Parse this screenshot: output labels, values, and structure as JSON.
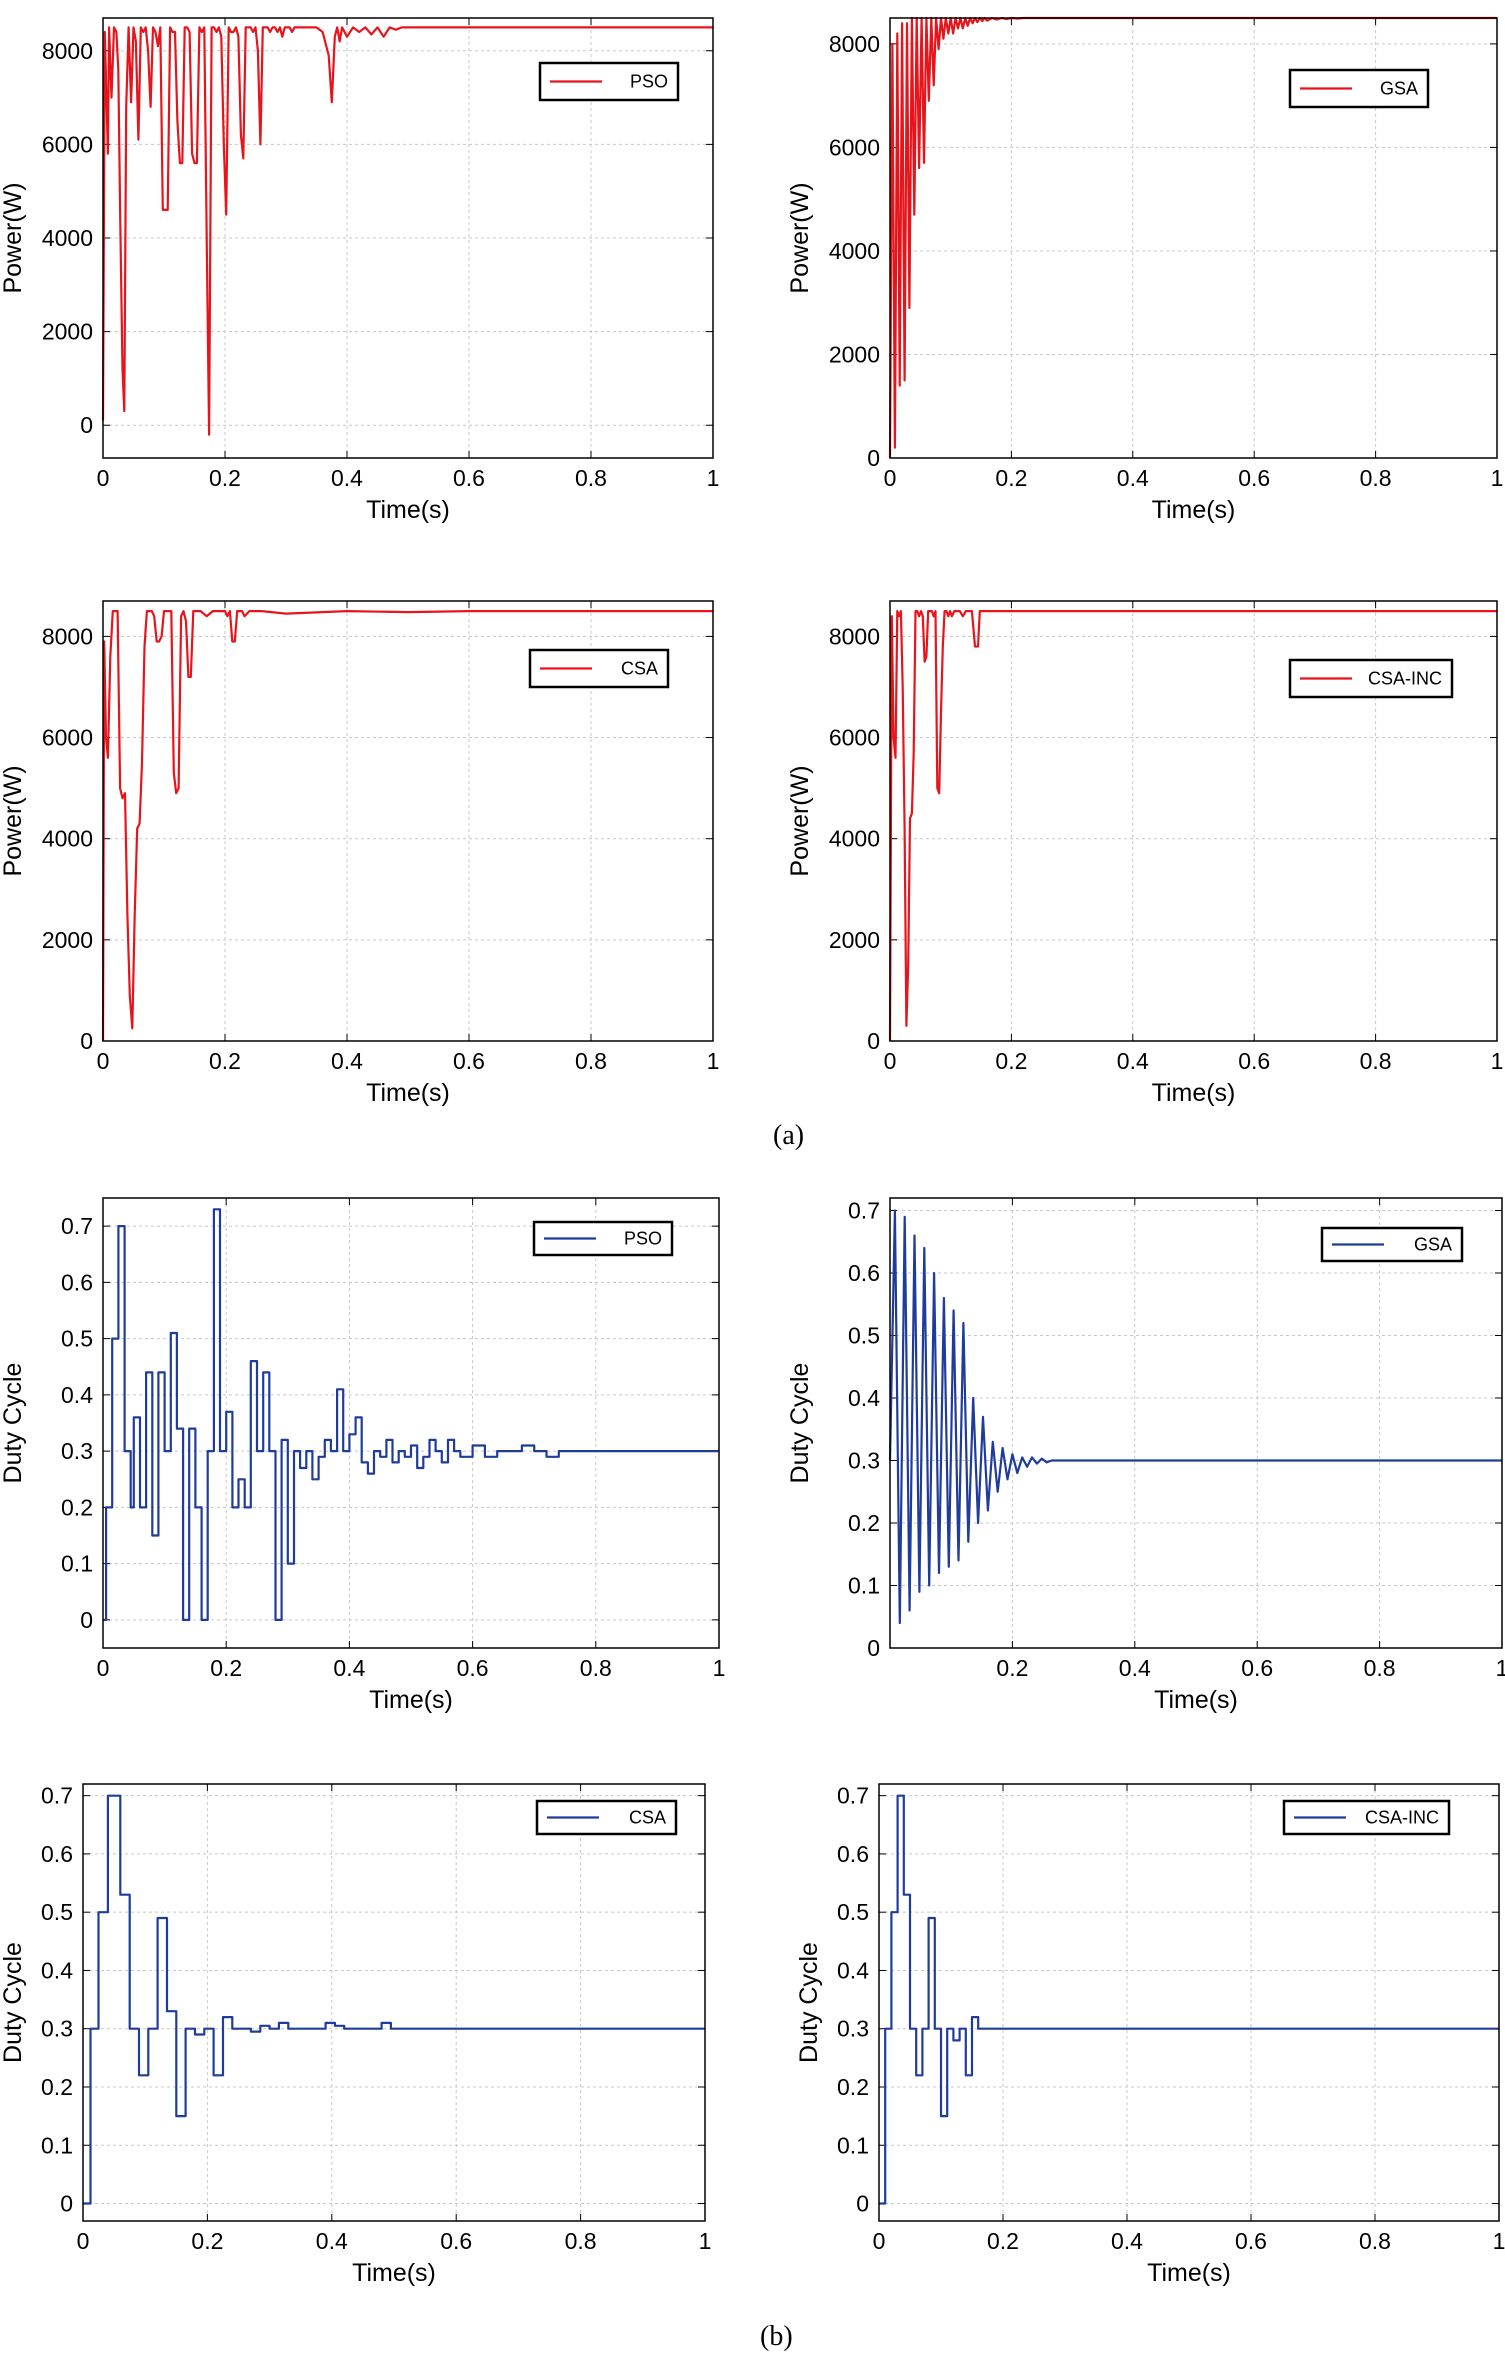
{
  "figure": {
    "caption_a": "(a)",
    "caption_b": "(b)"
  },
  "colors": {
    "power": "#e8141b",
    "duty": "#1f3c9c",
    "grid": "#c8c8c8"
  },
  "chart_data": [
    {
      "type": "line",
      "title": "",
      "legend": "PSO",
      "legend_position": "top-right",
      "xlabel": "Time(s)",
      "ylabel": "Power(W)",
      "xlim": [
        0,
        1
      ],
      "ylim": [
        -700,
        8700
      ],
      "xticks": [
        0,
        0.2,
        0.4,
        0.6,
        0.8,
        1
      ],
      "xtick_labels": [
        "0",
        "0.2",
        "0.4",
        "0.6",
        "0.8",
        "1"
      ],
      "yticks": [
        0,
        2000,
        4000,
        6000,
        8000
      ],
      "ytick_labels": [
        "0",
        "2000",
        "4000",
        "6000",
        "8000"
      ],
      "grid": true,
      "color_key": "power",
      "x": [
        0,
        0.003,
        0.008,
        0.01,
        0.014,
        0.018,
        0.022,
        0.025,
        0.028,
        0.032,
        0.035,
        0.038,
        0.042,
        0.046,
        0.05,
        0.054,
        0.058,
        0.062,
        0.066,
        0.07,
        0.074,
        0.078,
        0.082,
        0.086,
        0.09,
        0.094,
        0.098,
        0.102,
        0.106,
        0.11,
        0.114,
        0.118,
        0.122,
        0.126,
        0.13,
        0.134,
        0.138,
        0.142,
        0.146,
        0.15,
        0.154,
        0.158,
        0.162,
        0.166,
        0.17,
        0.174,
        0.178,
        0.182,
        0.186,
        0.19,
        0.194,
        0.198,
        0.202,
        0.206,
        0.21,
        0.214,
        0.218,
        0.222,
        0.226,
        0.23,
        0.234,
        0.238,
        0.242,
        0.246,
        0.25,
        0.254,
        0.258,
        0.262,
        0.266,
        0.27,
        0.274,
        0.278,
        0.282,
        0.286,
        0.29,
        0.294,
        0.298,
        0.302,
        0.306,
        0.31,
        0.314,
        0.318,
        0.322,
        0.326,
        0.33,
        0.34,
        0.35,
        0.36,
        0.37,
        0.375,
        0.38,
        0.384,
        0.388,
        0.392,
        0.4,
        0.41,
        0.42,
        0.43,
        0.44,
        0.45,
        0.46,
        0.47,
        0.48,
        0.49,
        0.5,
        0.52,
        0.55,
        0.6,
        0.7,
        0.8,
        0.9,
        1.0
      ],
      "y": [
        100,
        8400,
        5800,
        8500,
        7000,
        8500,
        8400,
        7600,
        4600,
        1200,
        300,
        6800,
        8500,
        6900,
        8500,
        8200,
        6100,
        8500,
        8400,
        8500,
        8000,
        6800,
        8500,
        8400,
        8100,
        8500,
        4600,
        4600,
        4600,
        8500,
        8400,
        8400,
        6500,
        5600,
        5600,
        8500,
        8500,
        8400,
        5800,
        5600,
        5600,
        8500,
        8400,
        8500,
        4000,
        -200,
        8500,
        8500,
        8400,
        8500,
        8300,
        6000,
        4500,
        8500,
        8400,
        8400,
        8500,
        8300,
        6200,
        5700,
        8500,
        8500,
        8500,
        8400,
        8500,
        8000,
        6000,
        8500,
        8500,
        8500,
        8400,
        8500,
        8500,
        8400,
        8500,
        8300,
        8500,
        8500,
        8500,
        8400,
        8500,
        8500,
        8500,
        8500,
        8500,
        8500,
        8500,
        8400,
        7900,
        6900,
        8300,
        8500,
        8200,
        8500,
        8300,
        8500,
        8400,
        8500,
        8350,
        8500,
        8300,
        8500,
        8450,
        8500,
        8500,
        8500,
        8500,
        8500,
        8500,
        8500,
        8500,
        8500
      ]
    },
    {
      "type": "line",
      "title": "",
      "legend": "GSA",
      "legend_position": "top-right",
      "xlabel": "Time(s)",
      "ylabel": "Power(W)",
      "xlim": [
        0,
        1
      ],
      "ylim": [
        0,
        8500
      ],
      "xticks": [
        0,
        0.2,
        0.4,
        0.6,
        0.8,
        1
      ],
      "xtick_labels": [
        "0",
        "0.2",
        "0.4",
        "0.6",
        "0.8",
        "1"
      ],
      "yticks": [
        0,
        2000,
        4000,
        6000,
        8000
      ],
      "ytick_labels": [
        "0",
        "2000",
        "4000",
        "6000",
        "8000"
      ],
      "grid": true,
      "color_key": "power",
      "x": [
        0,
        0.004,
        0.008,
        0.012,
        0.016,
        0.02,
        0.024,
        0.028,
        0.032,
        0.036,
        0.04,
        0.044,
        0.048,
        0.052,
        0.056,
        0.06,
        0.064,
        0.068,
        0.072,
        0.076,
        0.08,
        0.084,
        0.088,
        0.092,
        0.096,
        0.1,
        0.104,
        0.108,
        0.112,
        0.116,
        0.12,
        0.124,
        0.128,
        0.132,
        0.136,
        0.14,
        0.144,
        0.148,
        0.152,
        0.156,
        0.16,
        0.168,
        0.176,
        0.184,
        0.192,
        0.2,
        0.21,
        0.22,
        0.24,
        0.3,
        0.5,
        1.0
      ],
      "y": [
        0,
        8000,
        200,
        8200,
        1400,
        8400,
        1500,
        8400,
        2900,
        8500,
        4700,
        8500,
        5600,
        8500,
        5700,
        8500,
        6900,
        8500,
        7200,
        8500,
        7900,
        8500,
        8100,
        8500,
        8200,
        8500,
        8200,
        8500,
        8300,
        8500,
        8300,
        8500,
        8350,
        8500,
        8400,
        8500,
        8420,
        8500,
        8440,
        8500,
        8450,
        8500,
        8470,
        8500,
        8480,
        8500,
        8490,
        8500,
        8500,
        8500,
        8500,
        8500
      ]
    },
    {
      "type": "line",
      "title": "",
      "legend": "CSA",
      "legend_position": "top-right",
      "xlabel": "Time(s)",
      "ylabel": "Power(W)",
      "xlim": [
        0,
        1
      ],
      "ylim": [
        0,
        8700
      ],
      "xticks": [
        0,
        0.2,
        0.4,
        0.6,
        0.8,
        1
      ],
      "xtick_labels": [
        "0",
        "0.2",
        "0.4",
        "0.6",
        "0.8",
        "1"
      ],
      "yticks": [
        0,
        2000,
        4000,
        6000,
        8000
      ],
      "ytick_labels": [
        "0",
        "2000",
        "4000",
        "6000",
        "8000"
      ],
      "grid": true,
      "color_key": "power",
      "x": [
        0,
        0.002,
        0.005,
        0.008,
        0.012,
        0.016,
        0.02,
        0.024,
        0.028,
        0.032,
        0.036,
        0.04,
        0.044,
        0.048,
        0.052,
        0.056,
        0.06,
        0.064,
        0.068,
        0.072,
        0.076,
        0.08,
        0.084,
        0.088,
        0.092,
        0.096,
        0.1,
        0.104,
        0.108,
        0.112,
        0.116,
        0.12,
        0.124,
        0.128,
        0.132,
        0.136,
        0.14,
        0.144,
        0.148,
        0.152,
        0.156,
        0.16,
        0.17,
        0.18,
        0.19,
        0.2,
        0.204,
        0.208,
        0.212,
        0.216,
        0.22,
        0.224,
        0.228,
        0.232,
        0.24,
        0.26,
        0.3,
        0.4,
        0.5,
        0.6,
        0.8,
        1.0
      ],
      "y": [
        0,
        7900,
        6000,
        5600,
        7600,
        8500,
        8500,
        8500,
        5000,
        4800,
        4900,
        2500,
        900,
        250,
        2500,
        4200,
        4300,
        5500,
        7800,
        8500,
        8500,
        8500,
        8400,
        7900,
        7900,
        8000,
        8500,
        8500,
        8500,
        8500,
        5300,
        4900,
        5000,
        8400,
        8500,
        8300,
        7200,
        7200,
        8500,
        8500,
        8500,
        8500,
        8400,
        8500,
        8500,
        8500,
        8400,
        8500,
        7900,
        7900,
        8500,
        8500,
        8500,
        8400,
        8500,
        8500,
        8450,
        8500,
        8480,
        8500,
        8500,
        8500
      ]
    },
    {
      "type": "line",
      "title": "",
      "legend": "CSA-INC",
      "legend_position": "top-right",
      "xlabel": "Time(s)",
      "ylabel": "Power(W)",
      "xlim": [
        0,
        1
      ],
      "ylim": [
        0,
        8700
      ],
      "xticks": [
        0,
        0.2,
        0.4,
        0.6,
        0.8,
        1
      ],
      "xtick_labels": [
        "0",
        "0.2",
        "0.4",
        "0.6",
        "0.8",
        "1"
      ],
      "yticks": [
        0,
        2000,
        4000,
        6000,
        8000
      ],
      "ytick_labels": [
        "0",
        "2000",
        "4000",
        "6000",
        "8000"
      ],
      "grid": true,
      "color_key": "power",
      "x": [
        0,
        0.003,
        0.006,
        0.009,
        0.012,
        0.015,
        0.018,
        0.021,
        0.024,
        0.027,
        0.03,
        0.033,
        0.036,
        0.039,
        0.042,
        0.045,
        0.048,
        0.051,
        0.054,
        0.057,
        0.06,
        0.063,
        0.066,
        0.069,
        0.072,
        0.075,
        0.078,
        0.081,
        0.084,
        0.087,
        0.09,
        0.093,
        0.096,
        0.099,
        0.102,
        0.106,
        0.11,
        0.115,
        0.12,
        0.125,
        0.13,
        0.135,
        0.14,
        0.145,
        0.148,
        0.152,
        0.156,
        0.16,
        0.2,
        0.4,
        0.6,
        1.0
      ],
      "y": [
        0,
        8400,
        6000,
        5600,
        8500,
        8400,
        8500,
        7000,
        4200,
        300,
        1500,
        4400,
        4500,
        5700,
        8500,
        8500,
        8400,
        8500,
        8400,
        7500,
        7600,
        8500,
        8500,
        8500,
        8400,
        8500,
        5000,
        4900,
        6500,
        7800,
        8500,
        8500,
        8400,
        8500,
        8400,
        8500,
        8500,
        8500,
        8400,
        8500,
        8500,
        8500,
        7800,
        7800,
        8500,
        8500,
        8500,
        8500,
        8500,
        8500,
        8500,
        8500
      ]
    },
    {
      "type": "line",
      "step": true,
      "title": "",
      "legend": "PSO",
      "legend_position": "top-right",
      "xlabel": "Time(s)",
      "ylabel": "Duty Cycle",
      "xlim": [
        0,
        1
      ],
      "ylim": [
        -0.05,
        0.75
      ],
      "xticks": [
        0,
        0.2,
        0.4,
        0.6,
        0.8,
        1
      ],
      "xtick_labels": [
        "0",
        "0.2",
        "0.4",
        "0.6",
        "0.8",
        "1"
      ],
      "yticks": [
        0,
        0.1,
        0.2,
        0.3,
        0.4,
        0.5,
        0.6,
        0.7
      ],
      "ytick_labels": [
        "0",
        "0.1",
        "0.2",
        "0.3",
        "0.4",
        "0.5",
        "0.6",
        "0.7"
      ],
      "grid": true,
      "color_key": "duty",
      "x": [
        0,
        0.005,
        0.015,
        0.025,
        0.035,
        0.045,
        0.05,
        0.06,
        0.07,
        0.08,
        0.09,
        0.1,
        0.11,
        0.12,
        0.13,
        0.14,
        0.15,
        0.16,
        0.17,
        0.18,
        0.19,
        0.2,
        0.21,
        0.22,
        0.23,
        0.24,
        0.25,
        0.26,
        0.27,
        0.28,
        0.29,
        0.3,
        0.31,
        0.32,
        0.33,
        0.34,
        0.35,
        0.36,
        0.37,
        0.38,
        0.39,
        0.4,
        0.41,
        0.42,
        0.43,
        0.44,
        0.45,
        0.46,
        0.47,
        0.48,
        0.49,
        0.5,
        0.51,
        0.52,
        0.53,
        0.54,
        0.55,
        0.56,
        0.57,
        0.58,
        0.6,
        0.62,
        0.64,
        0.66,
        0.68,
        0.7,
        0.72,
        0.74,
        0.76,
        0.78,
        0.8,
        0.84,
        0.88,
        0.92,
        0.96,
        1.0
      ],
      "y": [
        0,
        0.2,
        0.5,
        0.7,
        0.3,
        0.2,
        0.36,
        0.2,
        0.44,
        0.15,
        0.44,
        0.3,
        0.51,
        0.34,
        0,
        0.34,
        0.2,
        0,
        0.3,
        0.73,
        0.3,
        0.37,
        0.2,
        0.25,
        0.2,
        0.46,
        0.3,
        0.44,
        0.3,
        0,
        0.32,
        0.1,
        0.3,
        0.27,
        0.3,
        0.25,
        0.29,
        0.32,
        0.3,
        0.41,
        0.3,
        0.33,
        0.36,
        0.28,
        0.26,
        0.3,
        0.29,
        0.32,
        0.28,
        0.3,
        0.29,
        0.31,
        0.27,
        0.29,
        0.32,
        0.3,
        0.28,
        0.32,
        0.3,
        0.29,
        0.31,
        0.29,
        0.3,
        0.3,
        0.31,
        0.3,
        0.29,
        0.3,
        0.3,
        0.3,
        0.3,
        0.3,
        0.3,
        0.3,
        0.3,
        0.3
      ]
    },
    {
      "type": "line",
      "title": "",
      "legend": "GSA",
      "legend_position": "top-right",
      "xlabel": "Time(s)",
      "ylabel": "Duty Cycle",
      "xlim": [
        0,
        1
      ],
      "ylim": [
        0,
        0.72
      ],
      "xticks": [
        0.2,
        0.4,
        0.6,
        0.8,
        1
      ],
      "xtick_labels": [
        "0.2",
        "0.4",
        "0.6",
        "0.8",
        "1"
      ],
      "yticks": [
        0,
        0.1,
        0.2,
        0.3,
        0.4,
        0.5,
        0.6,
        0.7
      ],
      "ytick_labels": [
        "0",
        "0.1",
        "0.2",
        "0.3",
        "0.4",
        "0.5",
        "0.6",
        "0.7"
      ],
      "grid": true,
      "color_key": "duty",
      "x": [
        0,
        0.008,
        0.016,
        0.024,
        0.032,
        0.04,
        0.048,
        0.056,
        0.064,
        0.072,
        0.08,
        0.088,
        0.096,
        0.104,
        0.112,
        0.12,
        0.128,
        0.136,
        0.144,
        0.152,
        0.16,
        0.168,
        0.176,
        0.184,
        0.192,
        0.2,
        0.208,
        0.216,
        0.224,
        0.232,
        0.24,
        0.248,
        0.256,
        0.264,
        0.272,
        0.28,
        0.3,
        0.4,
        0.6,
        0.8,
        1.0
      ],
      "y": [
        0.3,
        0.7,
        0.04,
        0.69,
        0.06,
        0.66,
        0.09,
        0.64,
        0.1,
        0.6,
        0.12,
        0.56,
        0.13,
        0.54,
        0.14,
        0.52,
        0.17,
        0.4,
        0.2,
        0.37,
        0.22,
        0.33,
        0.25,
        0.32,
        0.27,
        0.31,
        0.28,
        0.305,
        0.29,
        0.305,
        0.295,
        0.303,
        0.297,
        0.3,
        0.3,
        0.3,
        0.3,
        0.3,
        0.3,
        0.3,
        0.3
      ]
    },
    {
      "type": "line",
      "step": true,
      "title": "",
      "legend": "CSA",
      "legend_position": "top-right",
      "xlabel": "Time(s)",
      "ylabel": "Duty Cycle",
      "xlim": [
        0,
        1
      ],
      "ylim": [
        -0.03,
        0.72
      ],
      "xticks": [
        0,
        0.2,
        0.4,
        0.6,
        0.8,
        1
      ],
      "xtick_labels": [
        "0",
        "0.2",
        "0.4",
        "0.6",
        "0.8",
        "1"
      ],
      "yticks": [
        0,
        0.1,
        0.2,
        0.3,
        0.4,
        0.5,
        0.6,
        0.7
      ],
      "ytick_labels": [
        "0",
        "0.1",
        "0.2",
        "0.3",
        "0.4",
        "0.5",
        "0.6",
        "0.7"
      ],
      "grid": true,
      "color_key": "duty",
      "x": [
        0,
        0.012,
        0.025,
        0.04,
        0.06,
        0.075,
        0.09,
        0.105,
        0.12,
        0.135,
        0.15,
        0.165,
        0.18,
        0.195,
        0.21,
        0.225,
        0.24,
        0.255,
        0.27,
        0.285,
        0.3,
        0.315,
        0.33,
        0.345,
        0.36,
        0.375,
        0.39,
        0.405,
        0.42,
        0.435,
        0.45,
        0.465,
        0.48,
        0.495,
        0.51,
        0.6,
        0.8,
        1.0
      ],
      "y": [
        0,
        0.3,
        0.5,
        0.7,
        0.53,
        0.3,
        0.22,
        0.3,
        0.49,
        0.33,
        0.15,
        0.3,
        0.29,
        0.3,
        0.22,
        0.32,
        0.3,
        0.3,
        0.295,
        0.305,
        0.3,
        0.31,
        0.3,
        0.3,
        0.3,
        0.3,
        0.31,
        0.305,
        0.3,
        0.3,
        0.3,
        0.3,
        0.31,
        0.3,
        0.3,
        0.3,
        0.3,
        0.3
      ]
    },
    {
      "type": "line",
      "step": true,
      "title": "",
      "legend": "CSA-INC",
      "legend_position": "top-right",
      "xlabel": "Time(s)",
      "ylabel": "Duty Cycle",
      "xlim": [
        0,
        1
      ],
      "ylim": [
        -0.03,
        0.72
      ],
      "xticks": [
        0,
        0.2,
        0.4,
        0.6,
        0.8,
        1
      ],
      "xtick_labels": [
        "0",
        "0.2",
        "0.4",
        "0.6",
        "0.8",
        "1"
      ],
      "yticks": [
        0,
        0.1,
        0.2,
        0.3,
        0.4,
        0.5,
        0.6,
        0.7
      ],
      "ytick_labels": [
        "0",
        "0.1",
        "0.2",
        "0.3",
        "0.4",
        "0.5",
        "0.6",
        "0.7"
      ],
      "grid": true,
      "color_key": "duty",
      "x": [
        0,
        0.01,
        0.02,
        0.03,
        0.04,
        0.05,
        0.06,
        0.07,
        0.08,
        0.09,
        0.1,
        0.11,
        0.12,
        0.13,
        0.14,
        0.15,
        0.16,
        0.2,
        0.3,
        0.4,
        0.5,
        0.6,
        0.7,
        0.8,
        0.9,
        1.0
      ],
      "y": [
        0,
        0.3,
        0.5,
        0.7,
        0.53,
        0.3,
        0.22,
        0.3,
        0.49,
        0.3,
        0.15,
        0.3,
        0.28,
        0.3,
        0.22,
        0.32,
        0.3,
        0.3,
        0.3,
        0.3,
        0.3,
        0.3,
        0.3,
        0.3,
        0.3,
        0.3
      ]
    }
  ]
}
